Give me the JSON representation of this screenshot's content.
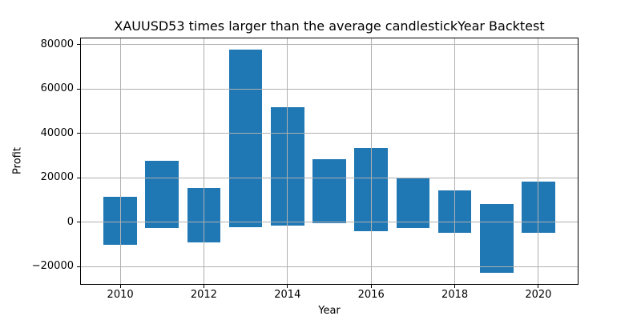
{
  "figure": {
    "background": "#ffffff",
    "text_color": "#000000"
  },
  "chart_data": {
    "type": "bar",
    "title": "XAUUSD53 times larger than the average candlestickYear Backtest",
    "xlabel": "Year",
    "ylabel": "Profit",
    "bars": [
      {
        "year": 2010,
        "bottom": -10300,
        "top": 11400
      },
      {
        "year": 2011,
        "bottom": -2600,
        "top": 27600
      },
      {
        "year": 2012,
        "bottom": -9200,
        "top": 15400
      },
      {
        "year": 2013,
        "bottom": -2300,
        "top": 77700
      },
      {
        "year": 2014,
        "bottom": -1600,
        "top": 51700
      },
      {
        "year": 2015,
        "bottom": -300,
        "top": 28400
      },
      {
        "year": 2016,
        "bottom": -4000,
        "top": 33400
      },
      {
        "year": 2017,
        "bottom": -2700,
        "top": 19700
      },
      {
        "year": 2018,
        "bottom": -4900,
        "top": 14300
      },
      {
        "year": 2019,
        "bottom": -22800,
        "top": 8300
      },
      {
        "year": 2020,
        "bottom": -4900,
        "top": 18300
      }
    ],
    "bar_width": 0.8,
    "bar_color": "#1f77b4",
    "grid": true,
    "grid_color": "#b0b0b0",
    "grid_above_bars": true,
    "x_ticks": [
      2010,
      2012,
      2014,
      2016,
      2018,
      2020
    ],
    "x_tick_labels": [
      "2010",
      "2012",
      "2014",
      "2016",
      "2018",
      "2020"
    ],
    "y_ticks": [
      -20000,
      0,
      20000,
      40000,
      60000,
      80000
    ],
    "y_tick_labels": [
      "−20000",
      "0",
      "20000",
      "40000",
      "60000",
      "80000"
    ],
    "xlim": [
      2009.06,
      2020.94
    ],
    "ylim": [
      -27800,
      82700
    ],
    "legend_position": "none"
  }
}
